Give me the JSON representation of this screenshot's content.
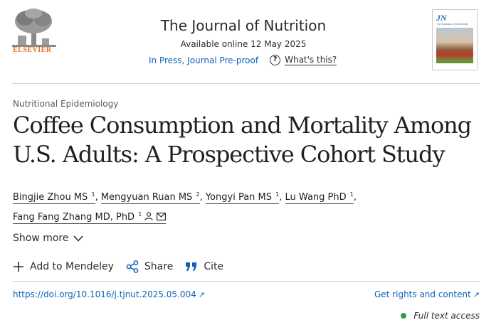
{
  "header": {
    "publisher_logo_text": "ELSEVIER",
    "journal_title": "The Journal of Nutrition",
    "available_online": "Available online 12 May 2025",
    "in_press": "In Press, Journal Pre-proof",
    "whats_this": "What's this?",
    "cover_logo": "JN",
    "cover_subtitle": "THE JOURNAL OF NUTRITION"
  },
  "article": {
    "section": "Nutritional Epidemiology",
    "title_line1": "Coffee Consumption and Mortality Among",
    "title_line2": "U.S. Adults: A Prospective Cohort Study",
    "authors": [
      {
        "name": "Bingjie Zhou MS",
        "sup": "1"
      },
      {
        "name": "Mengyuan Ruan MS",
        "sup": "2"
      },
      {
        "name": "Yongyi Pan MS",
        "sup": "1"
      },
      {
        "name": "Lu Wang PhD",
        "sup": "1"
      },
      {
        "name": "Fang Fang Zhang MD, PhD",
        "sup": "1"
      }
    ],
    "separator": ","
  },
  "controls": {
    "show_more": "Show more",
    "add_to_mendeley": "Add to Mendeley",
    "share": "Share",
    "cite": "Cite"
  },
  "links": {
    "doi": "https://doi.org/10.1016/j.tjnut.2025.05.004",
    "rights": "Get rights and content",
    "arrow": "↗"
  },
  "access": {
    "label": "Full text access",
    "status_color": "#2e9e3e"
  },
  "colors": {
    "link": "#0b63b8",
    "elsevier_orange": "#e9711c"
  }
}
